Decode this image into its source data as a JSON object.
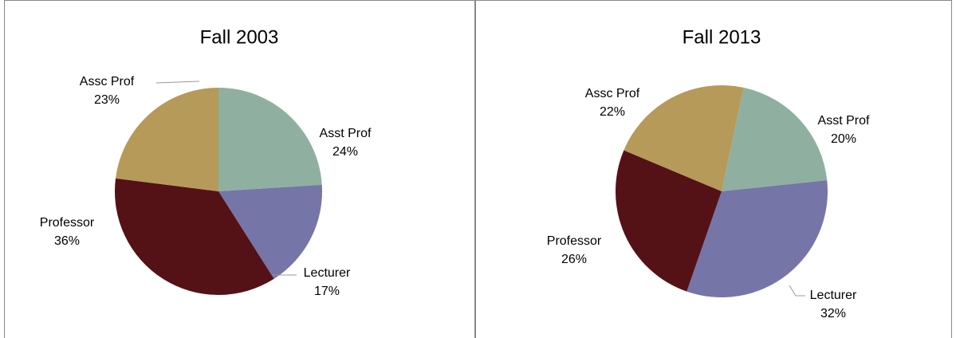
{
  "chart_data": [
    {
      "type": "pie",
      "title": "Fall 2003",
      "categories": [
        "Asst Prof",
        "Lecturer",
        "Professor",
        "Assc Prof"
      ],
      "values": [
        24,
        17,
        36,
        23
      ],
      "value_labels": [
        "24%",
        "17%",
        "36%",
        "23%"
      ],
      "colors": [
        "#8fb0a0",
        "#7575a8",
        "#541216",
        "#b59a5a"
      ]
    },
    {
      "type": "pie",
      "title": "Fall 2013",
      "categories": [
        "Asst Prof",
        "Lecturer",
        "Professor",
        "Assc Prof"
      ],
      "values": [
        20,
        32,
        26,
        22
      ],
      "value_labels": [
        "20%",
        "32%",
        "26%",
        "22%"
      ],
      "colors": [
        "#8fb0a0",
        "#7575a8",
        "#541216",
        "#b59a5a"
      ]
    }
  ]
}
